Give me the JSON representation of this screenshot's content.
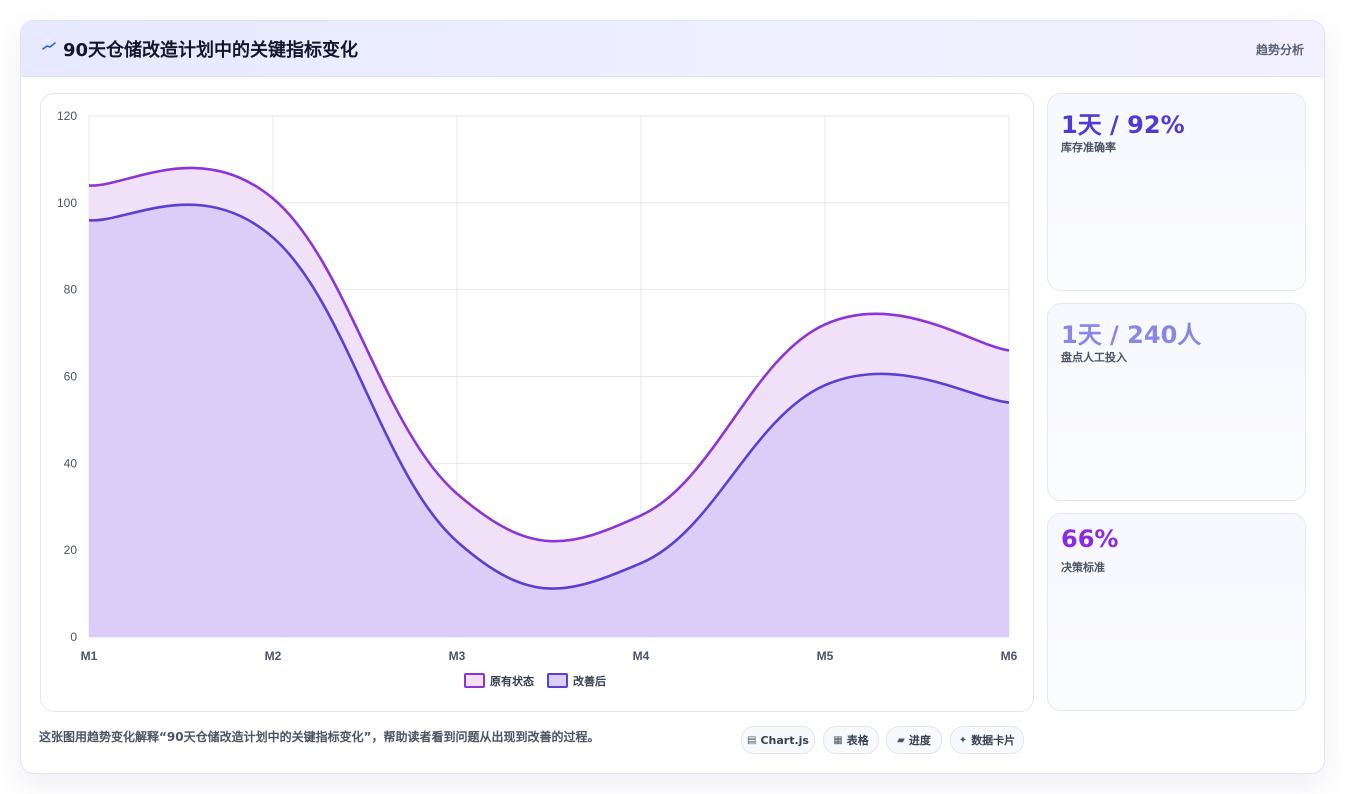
{
  "header": {
    "title": "90天仓储改造计划中的关键指标变化",
    "tag": "趋势分析"
  },
  "stats": [
    {
      "value": "1天 / 92%",
      "label": "库存准确率",
      "color": "#4f3ad6"
    },
    {
      "value": "1天 / 240人",
      "label": "盘点人工投入",
      "color": "#8b86e6"
    },
    {
      "value": "66%",
      "label": "决策标准",
      "color": "#8a2be2"
    }
  ],
  "caption": "这张图用趋势变化解释“90天仓储改造计划中的关键指标变化”，帮助读者看到问题从出现到改善的过程。",
  "chips": [
    {
      "icon": "▤",
      "icon_name": "chart-icon",
      "label": "Chart.js"
    },
    {
      "icon": "▦",
      "icon_name": "table-icon",
      "label": "表格"
    },
    {
      "icon": "▰",
      "icon_name": "progress-icon",
      "label": "进度"
    },
    {
      "icon": "✦",
      "icon_name": "sparkle-icon",
      "label": "数据卡片"
    }
  ],
  "chart_data": {
    "type": "area",
    "categories": [
      "M1",
      "M2",
      "M3",
      "M4",
      "M5",
      "M6"
    ],
    "ylim": [
      0,
      120
    ],
    "yticks": [
      0,
      20,
      40,
      60,
      80,
      100,
      120
    ],
    "grid": true,
    "legend_position": "bottom",
    "series": [
      {
        "name": "原有状态",
        "values": [
          104,
          101,
          33,
          28,
          72,
          66
        ],
        "color": "#8b35d6",
        "fill": "#f0e1f8"
      },
      {
        "name": "改善后",
        "values": [
          96,
          92,
          22,
          17,
          58,
          54
        ],
        "color": "#5b3fd3",
        "fill": "#dccdf8"
      }
    ]
  }
}
